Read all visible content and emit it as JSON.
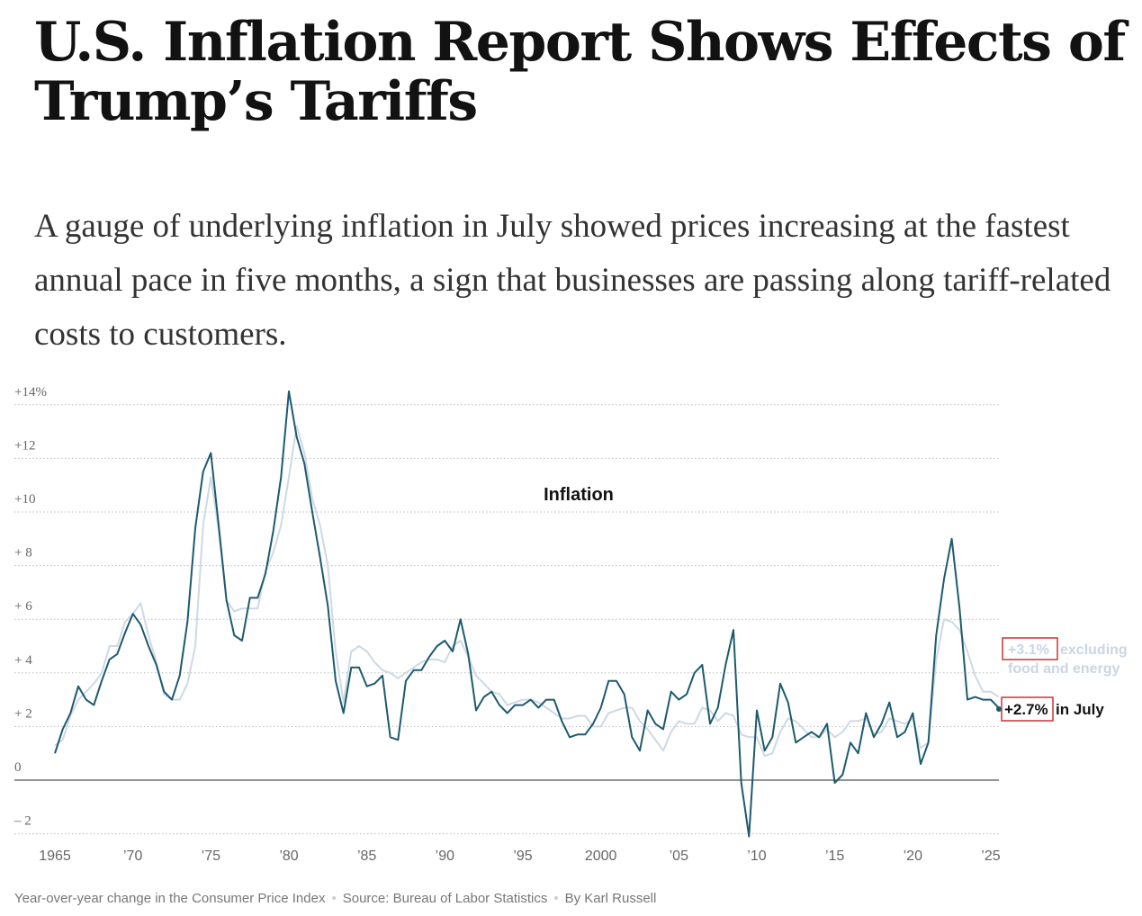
{
  "headline": "U.S. Inflation Report Shows Effects of Trump’s Tariffs",
  "dek": "A gauge of underlying inflation in July showed prices increasing at the fastest annual pace in five months, a sign that businesses are passing along tariff-related costs to customers.",
  "chart_data": {
    "type": "line",
    "title": "Inflation",
    "ylim": [
      -2.5,
      14.5
    ],
    "xlim": [
      1965,
      2025.6
    ],
    "grid": true,
    "y_ticks": [
      {
        "v": 14,
        "label": "+14%"
      },
      {
        "v": 12,
        "label": "+12"
      },
      {
        "v": 10,
        "label": "+10"
      },
      {
        "v": 8,
        "label": "+ 8"
      },
      {
        "v": 6,
        "label": "+ 6"
      },
      {
        "v": 4,
        "label": "+ 4"
      },
      {
        "v": 2,
        "label": "+ 2"
      },
      {
        "v": 0,
        "label": "0"
      },
      {
        "v": -2,
        "label": "– 2"
      }
    ],
    "x_ticks": [
      {
        "v": 1965,
        "label": "1965"
      },
      {
        "v": 1970,
        "label": "’70"
      },
      {
        "v": 1975,
        "label": "’75"
      },
      {
        "v": 1980,
        "label": "’80"
      },
      {
        "v": 1985,
        "label": "’85"
      },
      {
        "v": 1990,
        "label": "’90"
      },
      {
        "v": 1995,
        "label": "’95"
      },
      {
        "v": 2000,
        "label": "2000"
      },
      {
        "v": 2005,
        "label": "’05"
      },
      {
        "v": 2010,
        "label": "’10"
      },
      {
        "v": 2015,
        "label": "’15"
      },
      {
        "v": 2020,
        "label": "’20"
      },
      {
        "v": 2025,
        "label": "’25"
      }
    ],
    "series": [
      {
        "key": "core",
        "color": "#cdd9e5",
        "annotation_value": "+3.1%",
        "annotation_text": "excluding food and energy",
        "values": [
          1.3,
          1.5,
          2.4,
          3.0,
          3.3,
          3.6,
          4.0,
          5.0,
          5.0,
          5.9,
          6.2,
          6.6,
          5.4,
          4.4,
          3.2,
          3.0,
          3.0,
          3.6,
          5.0,
          9.5,
          11.3,
          9.3,
          6.7,
          6.3,
          6.4,
          6.4,
          6.4,
          7.8,
          8.5,
          9.5,
          11.3,
          13.2,
          12.2,
          10.5,
          9.5,
          8.0,
          4.8,
          2.9,
          4.8,
          5.0,
          4.8,
          4.4,
          4.1,
          4.0,
          3.8,
          4.0,
          4.2,
          4.4,
          4.5,
          4.5,
          4.4,
          5.0,
          5.2,
          4.6,
          3.9,
          3.6,
          3.3,
          3.2,
          2.8,
          2.9,
          3.0,
          3.0,
          2.9,
          2.7,
          2.5,
          2.3,
          2.3,
          2.4,
          2.4,
          2.0,
          2.0,
          2.5,
          2.6,
          2.7,
          2.7,
          2.2,
          1.9,
          1.5,
          1.1,
          1.8,
          2.2,
          2.1,
          2.1,
          2.7,
          2.6,
          2.2,
          2.5,
          2.4,
          1.7,
          1.6,
          1.6,
          0.9,
          1.0,
          1.8,
          2.3,
          2.2,
          1.9,
          1.6,
          1.6,
          1.9,
          1.6,
          1.8,
          2.2,
          2.2,
          2.3,
          1.7,
          1.8,
          2.3,
          2.2,
          2.1,
          2.3,
          1.2,
          1.4,
          4.5,
          6.0,
          5.9,
          5.6,
          4.8,
          3.9,
          3.3,
          3.3,
          3.1
        ]
      },
      {
        "key": "headline",
        "color": "#1d5a6e",
        "annotation_value": "+2.7%",
        "annotation_text": "in July",
        "values": [
          1.0,
          1.9,
          2.5,
          3.5,
          3.0,
          2.8,
          3.7,
          4.5,
          4.7,
          5.5,
          6.2,
          5.8,
          5.0,
          4.3,
          3.3,
          3.0,
          3.9,
          5.9,
          9.4,
          11.5,
          12.2,
          9.5,
          6.7,
          5.4,
          5.2,
          6.8,
          6.8,
          7.7,
          9.3,
          11.3,
          14.5,
          12.8,
          11.8,
          10.0,
          8.3,
          6.5,
          3.7,
          2.5,
          4.2,
          4.2,
          3.5,
          3.6,
          3.9,
          1.6,
          1.5,
          3.7,
          4.1,
          4.1,
          4.6,
          5.0,
          5.2,
          4.8,
          6.0,
          4.7,
          2.6,
          3.1,
          3.3,
          2.8,
          2.5,
          2.8,
          2.8,
          3.0,
          2.7,
          3.0,
          3.0,
          2.2,
          1.6,
          1.7,
          1.7,
          2.1,
          2.7,
          3.7,
          3.7,
          3.2,
          1.6,
          1.1,
          2.6,
          2.1,
          1.9,
          3.3,
          3.0,
          3.2,
          4.0,
          4.3,
          2.1,
          2.7,
          4.3,
          5.6,
          -0.1,
          -2.1,
          2.6,
          1.1,
          1.6,
          3.6,
          2.9,
          1.4,
          1.6,
          1.8,
          1.6,
          2.1,
          -0.1,
          0.2,
          1.4,
          1.0,
          2.5,
          1.6,
          2.1,
          2.9,
          1.6,
          1.8,
          2.5,
          0.6,
          1.4,
          5.4,
          7.5,
          9.0,
          6.4,
          3.0,
          3.1,
          3.0,
          3.0,
          2.7
        ]
      }
    ],
    "x_start": 1965,
    "x_step_years": 0.5
  },
  "footer": {
    "note": "Year-over-year change in the Consumer Price Index",
    "source": "Source: Bureau of Labor Statistics",
    "byline": "By Karl Russell"
  }
}
